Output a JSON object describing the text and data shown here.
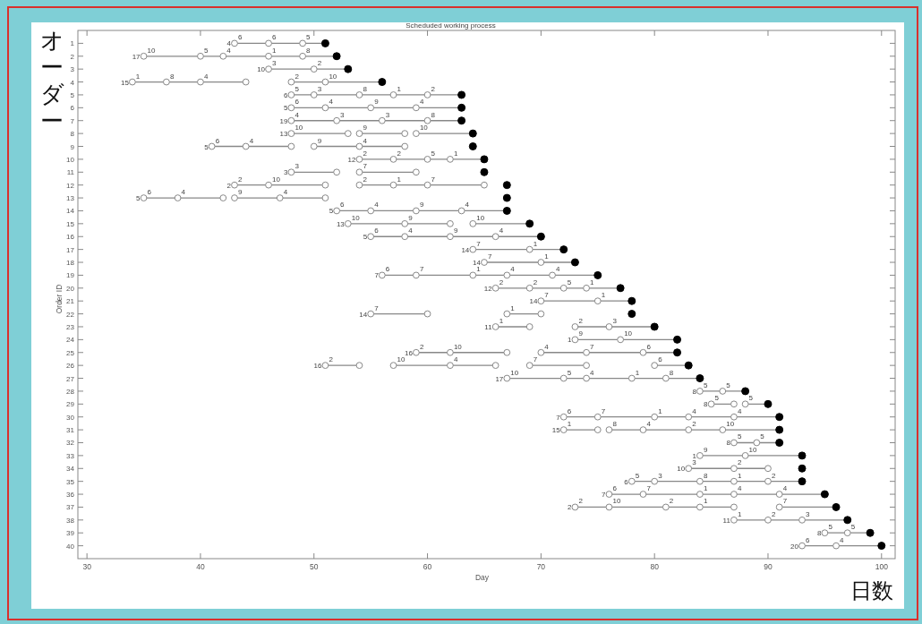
{
  "chart_data": {
    "type": "line",
    "title": "Scheduded working process",
    "xlabel": "Day",
    "ylabel": "Order ID",
    "marker": "circle",
    "xlim": [
      29.2,
      101.2
    ],
    "xticks": [
      30,
      40,
      50,
      60,
      70,
      80,
      90,
      100
    ],
    "ylim": [
      41,
      0
    ],
    "yticks": [
      1,
      2,
      3,
      4,
      5,
      6,
      7,
      8,
      9,
      10,
      11,
      12,
      13,
      14,
      15,
      16,
      17,
      18,
      19,
      20,
      21,
      22,
      23,
      24,
      25,
      26,
      27,
      28,
      29,
      30,
      31,
      32,
      33,
      34,
      35,
      36,
      37,
      38,
      39,
      40
    ],
    "series": [
      {
        "color": "#888888",
        "x": [
          43,
          46,
          49,
          51
        ],
        "values": [
          1,
          1,
          1,
          1
        ]
      },
      {
        "color": "#888888",
        "x": [
          35,
          40,
          42,
          46,
          49,
          52
        ],
        "values": [
          2,
          2,
          2,
          2,
          2,
          2
        ]
      },
      {
        "color": "#888888",
        "x": [
          46,
          50,
          53
        ],
        "values": [
          3,
          3,
          3
        ]
      },
      {
        "color": "#888888",
        "x": [
          34,
          37,
          40,
          44,
          null,
          48,
          51,
          56
        ],
        "values": [
          4,
          4,
          4,
          4,
          null,
          4,
          4,
          4
        ]
      },
      {
        "color": "#888888",
        "x": [
          48,
          50,
          54,
          57,
          60,
          63
        ],
        "values": [
          5,
          5,
          5,
          5,
          5,
          5
        ]
      },
      {
        "color": "#888888",
        "x": [
          48,
          51,
          55,
          59,
          63
        ],
        "values": [
          6,
          6,
          6,
          6,
          6
        ]
      },
      {
        "color": "#888888",
        "x": [
          48,
          52,
          56,
          60,
          63
        ],
        "values": [
          7,
          7,
          7,
          7,
          7
        ]
      },
      {
        "color": "#888888",
        "x": [
          48,
          53,
          null,
          54,
          58,
          null,
          59,
          64
        ],
        "values": [
          8,
          8,
          null,
          8,
          8,
          null,
          8,
          8
        ]
      },
      {
        "color": "#888888",
        "x": [
          41,
          44,
          48,
          null,
          50,
          54,
          58
        ],
        "values": [
          9,
          9,
          9,
          null,
          9,
          9,
          9
        ]
      },
      {
        "color": "#888888",
        "x": [
          54,
          57,
          60,
          62,
          65
        ],
        "values": [
          10,
          10,
          10,
          10,
          10
        ]
      },
      {
        "color": "#888888",
        "x": [
          48,
          52,
          null,
          54,
          59
        ],
        "values": [
          11,
          11,
          null,
          11,
          11
        ]
      },
      {
        "color": "#888888",
        "x": [
          43,
          46,
          51,
          null,
          54,
          57,
          60,
          65
        ],
        "values": [
          12,
          12,
          12,
          null,
          12,
          12,
          12,
          12
        ]
      },
      {
        "color": "#888888",
        "x": [
          35,
          38,
          42,
          null,
          43,
          47,
          51
        ],
        "values": [
          13,
          13,
          13,
          null,
          13,
          13,
          13
        ]
      },
      {
        "color": "#888888",
        "x": [
          52,
          55,
          59,
          63,
          67
        ],
        "values": [
          14,
          14,
          14,
          14,
          14
        ]
      },
      {
        "color": "#888888",
        "x": [
          53,
          58,
          62,
          null,
          64,
          69
        ],
        "values": [
          15,
          15,
          15,
          null,
          15,
          15
        ]
      },
      {
        "color": "#888888",
        "x": [
          55,
          58,
          62,
          66,
          70
        ],
        "values": [
          16,
          16,
          16,
          16,
          16
        ]
      },
      {
        "color": "#888888",
        "x": [
          64,
          69,
          72
        ],
        "values": [
          17,
          17,
          17
        ]
      },
      {
        "color": "#888888",
        "x": [
          65,
          70,
          73
        ],
        "values": [
          18,
          18,
          18
        ]
      },
      {
        "color": "#888888",
        "x": [
          56,
          59,
          64,
          67,
          71,
          75
        ],
        "values": [
          19,
          19,
          19,
          19,
          19,
          19
        ]
      },
      {
        "color": "#888888",
        "x": [
          66,
          69,
          72,
          74,
          77
        ],
        "values": [
          20,
          20,
          20,
          20,
          20
        ]
      },
      {
        "color": "#888888",
        "x": [
          70,
          75,
          78
        ],
        "values": [
          21,
          21,
          21
        ]
      },
      {
        "color": "#888888",
        "x": [
          55,
          60,
          null,
          67,
          70
        ],
        "values": [
          22,
          22,
          null,
          22,
          22
        ]
      },
      {
        "color": "#888888",
        "x": [
          66,
          69,
          null,
          73,
          76,
          80
        ],
        "values": [
          23,
          23,
          null,
          23,
          23,
          23
        ]
      },
      {
        "color": "#888888",
        "x": [
          73,
          77,
          82
        ],
        "values": [
          24,
          24,
          24
        ]
      },
      {
        "color": "#888888",
        "x": [
          59,
          62,
          67,
          null,
          70,
          74,
          79,
          82
        ],
        "values": [
          25,
          25,
          25,
          null,
          25,
          25,
          25,
          25
        ]
      },
      {
        "color": "#888888",
        "x": [
          51,
          54,
          null,
          57,
          62,
          66,
          null,
          69,
          74,
          null,
          80,
          83
        ],
        "values": [
          26,
          26,
          null,
          26,
          26,
          26,
          null,
          26,
          26,
          null,
          26,
          26
        ]
      },
      {
        "color": "#888888",
        "x": [
          67,
          72,
          74,
          78,
          81,
          84
        ],
        "values": [
          27,
          27,
          27,
          27,
          27,
          27
        ]
      },
      {
        "color": "#888888",
        "x": [
          84,
          86,
          88
        ],
        "values": [
          28,
          28,
          28
        ]
      },
      {
        "color": "#888888",
        "x": [
          85,
          87,
          null,
          88,
          90
        ],
        "values": [
          29,
          29,
          null,
          29,
          29
        ]
      },
      {
        "color": "#888888",
        "x": [
          72,
          75,
          80,
          83,
          87,
          91
        ],
        "values": [
          30,
          30,
          30,
          30,
          30,
          30
        ]
      },
      {
        "color": "#888888",
        "x": [
          72,
          75,
          null,
          76,
          79,
          83,
          86,
          91
        ],
        "values": [
          31,
          31,
          null,
          31,
          31,
          31,
          31,
          31
        ]
      },
      {
        "color": "#888888",
        "x": [
          87,
          89,
          91
        ],
        "values": [
          32,
          32,
          32
        ]
      },
      {
        "color": "#888888",
        "x": [
          84,
          88,
          93
        ],
        "values": [
          33,
          33,
          33
        ]
      },
      {
        "color": "#888888",
        "x": [
          83,
          87,
          90
        ],
        "values": [
          34,
          34,
          34
        ]
      },
      {
        "color": "#888888",
        "x": [
          78,
          80,
          84,
          87,
          90,
          93
        ],
        "values": [
          35,
          35,
          35,
          35,
          35,
          35
        ]
      },
      {
        "color": "#888888",
        "x": [
          76,
          79,
          84,
          87,
          91,
          95
        ],
        "values": [
          36,
          36,
          36,
          36,
          36,
          36
        ]
      },
      {
        "color": "#888888",
        "x": [
          73,
          76,
          81,
          84,
          87,
          null,
          91,
          96
        ],
        "values": [
          37,
          37,
          37,
          37,
          37,
          null,
          37,
          37
        ]
      },
      {
        "color": "#888888",
        "x": [
          87,
          90,
          93,
          97
        ],
        "values": [
          38,
          38,
          38,
          38
        ]
      },
      {
        "color": "#888888",
        "x": [
          95,
          97,
          99
        ],
        "values": [
          39,
          39,
          39
        ]
      },
      {
        "color": "#888888",
        "x": [
          93,
          96,
          100
        ],
        "values": [
          40,
          40,
          40
        ]
      },
      {
        "type": "scatter",
        "color": "#000000",
        "x": [
          51,
          52,
          53,
          56,
          63,
          63,
          63,
          64,
          64,
          65,
          65,
          67,
          67,
          67,
          69,
          70,
          72,
          73,
          75,
          77,
          78,
          78,
          80,
          82,
          82,
          83,
          84,
          88,
          90,
          91,
          91,
          91,
          93,
          93,
          93,
          95,
          96,
          97,
          99,
          100
        ],
        "values": [
          1,
          2,
          3,
          4,
          5,
          6,
          7,
          8,
          9,
          10,
          11,
          12,
          13,
          14,
          15,
          16,
          17,
          18,
          19,
          20,
          21,
          22,
          23,
          24,
          25,
          26,
          27,
          28,
          29,
          30,
          31,
          32,
          33,
          34,
          35,
          36,
          37,
          38,
          39,
          40
        ]
      }
    ],
    "annotations": [
      "オーダー",
      "日数",
      {
        "text": "4",
        "x": 43,
        "y": 1
      },
      {
        "text": "17",
        "x": 35,
        "y": 2
      },
      {
        "text": "10",
        "x": 46,
        "y": 3
      },
      {
        "text": "15",
        "x": 34,
        "y": 4
      },
      {
        "text": "6",
        "x": 48,
        "y": 5
      },
      {
        "text": "5",
        "x": 48,
        "y": 6
      },
      {
        "text": "19",
        "x": 48,
        "y": 7
      },
      {
        "text": "13",
        "x": 48,
        "y": 8
      },
      {
        "text": "5",
        "x": 41,
        "y": 9
      },
      {
        "text": "12",
        "x": 54,
        "y": 10
      },
      {
        "text": "3",
        "x": 48,
        "y": 11
      },
      {
        "text": "2",
        "x": 43,
        "y": 12
      },
      {
        "text": "5",
        "x": 35,
        "y": 13
      },
      {
        "text": "5",
        "x": 52,
        "y": 14
      },
      {
        "text": "13",
        "x": 53,
        "y": 15
      },
      {
        "text": "5",
        "x": 55,
        "y": 16
      },
      {
        "text": "14",
        "x": 64,
        "y": 17
      },
      {
        "text": "14",
        "x": 65,
        "y": 18
      },
      {
        "text": "7",
        "x": 56,
        "y": 19
      },
      {
        "text": "12",
        "x": 66,
        "y": 20
      },
      {
        "text": "14",
        "x": 70,
        "y": 21
      },
      {
        "text": "14",
        "x": 55,
        "y": 22
      },
      {
        "text": "11",
        "x": 66,
        "y": 23
      },
      {
        "text": "1",
        "x": 73,
        "y": 24
      },
      {
        "text": "16",
        "x": 59,
        "y": 25
      },
      {
        "text": "16",
        "x": 51,
        "y": 26
      },
      {
        "text": "17",
        "x": 67,
        "y": 27
      },
      {
        "text": "8",
        "x": 84,
        "y": 28
      },
      {
        "text": "8",
        "x": 85,
        "y": 29
      },
      {
        "text": "7",
        "x": 72,
        "y": 30
      },
      {
        "text": "15",
        "x": 72,
        "y": 31
      },
      {
        "text": "8",
        "x": 87,
        "y": 32
      },
      {
        "text": "1",
        "x": 84,
        "y": 33
      },
      {
        "text": "10",
        "x": 83,
        "y": 34
      },
      {
        "text": "6",
        "x": 78,
        "y": 35
      },
      {
        "text": "7",
        "x": 76,
        "y": 36
      },
      {
        "text": "2",
        "x": 73,
        "y": 37
      },
      {
        "text": "11",
        "x": 87,
        "y": 38
      },
      {
        "text": "8",
        "x": 95,
        "y": 39
      },
      {
        "text": "20",
        "x": 93,
        "y": 40
      },
      {
        "text": "6",
        "x": 43,
        "y": 1
      },
      {
        "text": "6",
        "x": 46,
        "y": 1
      },
      {
        "text": "5",
        "x": 49,
        "y": 1
      },
      {
        "text": "10",
        "x": 35,
        "y": 2
      },
      {
        "text": "5",
        "x": 40,
        "y": 2
      },
      {
        "text": "4",
        "x": 42,
        "y": 2
      },
      {
        "text": "1",
        "x": 46,
        "y": 2
      },
      {
        "text": "8",
        "x": 49,
        "y": 2
      },
      {
        "text": "3",
        "x": 46,
        "y": 3
      },
      {
        "text": "2",
        "x": 50,
        "y": 3
      },
      {
        "text": "1",
        "x": 34,
        "y": 4
      },
      {
        "text": "8",
        "x": 37,
        "y": 4
      },
      {
        "text": "4",
        "x": 40,
        "y": 4
      },
      {
        "text": "2",
        "x": 48,
        "y": 4
      },
      {
        "text": "10",
        "x": 51,
        "y": 4
      },
      {
        "text": "5",
        "x": 48,
        "y": 5
      },
      {
        "text": "3",
        "x": 50,
        "y": 5
      },
      {
        "text": "8",
        "x": 54,
        "y": 5
      },
      {
        "text": "1",
        "x": 57,
        "y": 5
      },
      {
        "text": "2",
        "x": 60,
        "y": 5
      },
      {
        "text": "6",
        "x": 48,
        "y": 6
      },
      {
        "text": "4",
        "x": 51,
        "y": 6
      },
      {
        "text": "9",
        "x": 55,
        "y": 6
      },
      {
        "text": "4",
        "x": 59,
        "y": 6
      },
      {
        "text": "4",
        "x": 48,
        "y": 7
      },
      {
        "text": "3",
        "x": 52,
        "y": 7
      },
      {
        "text": "3",
        "x": 56,
        "y": 7
      },
      {
        "text": "8",
        "x": 60,
        "y": 7
      },
      {
        "text": "10",
        "x": 48,
        "y": 8
      },
      {
        "text": "9",
        "x": 54,
        "y": 8
      },
      {
        "text": "10",
        "x": 59,
        "y": 8
      },
      {
        "text": "6",
        "x": 41,
        "y": 9
      },
      {
        "text": "4",
        "x": 44,
        "y": 9
      },
      {
        "text": "9",
        "x": 50,
        "y": 9
      },
      {
        "text": "4",
        "x": 54,
        "y": 9
      },
      {
        "text": "2",
        "x": 54,
        "y": 10
      },
      {
        "text": "2",
        "x": 57,
        "y": 10
      },
      {
        "text": "5",
        "x": 60,
        "y": 10
      },
      {
        "text": "1",
        "x": 62,
        "y": 10
      },
      {
        "text": "3",
        "x": 48,
        "y": 11
      },
      {
        "text": "7",
        "x": 54,
        "y": 11
      },
      {
        "text": "2",
        "x": 43,
        "y": 12
      },
      {
        "text": "10",
        "x": 46,
        "y": 12
      },
      {
        "text": "2",
        "x": 54,
        "y": 12
      },
      {
        "text": "1",
        "x": 57,
        "y": 12
      },
      {
        "text": "7",
        "x": 60,
        "y": 12
      },
      {
        "text": "6",
        "x": 35,
        "y": 13
      },
      {
        "text": "4",
        "x": 38,
        "y": 13
      },
      {
        "text": "9",
        "x": 43,
        "y": 13
      },
      {
        "text": "4",
        "x": 47,
        "y": 13
      },
      {
        "text": "6",
        "x": 52,
        "y": 14
      },
      {
        "text": "4",
        "x": 55,
        "y": 14
      },
      {
        "text": "9",
        "x": 59,
        "y": 14
      },
      {
        "text": "4",
        "x": 63,
        "y": 14
      },
      {
        "text": "10",
        "x": 53,
        "y": 15
      },
      {
        "text": "9",
        "x": 58,
        "y": 15
      },
      {
        "text": "10",
        "x": 64,
        "y": 15
      },
      {
        "text": "6",
        "x": 55,
        "y": 16
      },
      {
        "text": "4",
        "x": 58,
        "y": 16
      },
      {
        "text": "9",
        "x": 62,
        "y": 16
      },
      {
        "text": "4",
        "x": 66,
        "y": 16
      },
      {
        "text": "7",
        "x": 64,
        "y": 17
      },
      {
        "text": "1",
        "x": 69,
        "y": 17
      },
      {
        "text": "7",
        "x": 65,
        "y": 18
      },
      {
        "text": "1",
        "x": 70,
        "y": 18
      },
      {
        "text": "6",
        "x": 56,
        "y": 19
      },
      {
        "text": "7",
        "x": 59,
        "y": 19
      },
      {
        "text": "1",
        "x": 64,
        "y": 19
      },
      {
        "text": "4",
        "x": 67,
        "y": 19
      },
      {
        "text": "4",
        "x": 71,
        "y": 19
      },
      {
        "text": "2",
        "x": 66,
        "y": 20
      },
      {
        "text": "2",
        "x": 69,
        "y": 20
      },
      {
        "text": "5",
        "x": 72,
        "y": 20
      },
      {
        "text": "1",
        "x": 74,
        "y": 20
      },
      {
        "text": "7",
        "x": 70,
        "y": 21
      },
      {
        "text": "1",
        "x": 75,
        "y": 21
      },
      {
        "text": "7",
        "x": 55,
        "y": 22
      },
      {
        "text": "1",
        "x": 67,
        "y": 22
      },
      {
        "text": "1",
        "x": 66,
        "y": 23
      },
      {
        "text": "2",
        "x": 73,
        "y": 23
      },
      {
        "text": "3",
        "x": 76,
        "y": 23
      },
      {
        "text": "9",
        "x": 73,
        "y": 24
      },
      {
        "text": "10",
        "x": 77,
        "y": 24
      },
      {
        "text": "2",
        "x": 59,
        "y": 25
      },
      {
        "text": "10",
        "x": 62,
        "y": 25
      },
      {
        "text": "4",
        "x": 70,
        "y": 25
      },
      {
        "text": "7",
        "x": 74,
        "y": 25
      },
      {
        "text": "6",
        "x": 79,
        "y": 25
      },
      {
        "text": "2",
        "x": 51,
        "y": 26
      },
      {
        "text": "10",
        "x": 57,
        "y": 26
      },
      {
        "text": "4",
        "x": 62,
        "y": 26
      },
      {
        "text": "7",
        "x": 69,
        "y": 26
      },
      {
        "text": "6",
        "x": 80,
        "y": 26
      },
      {
        "text": "10",
        "x": 67,
        "y": 27
      },
      {
        "text": "5",
        "x": 72,
        "y": 27
      },
      {
        "text": "4",
        "x": 74,
        "y": 27
      },
      {
        "text": "1",
        "x": 78,
        "y": 27
      },
      {
        "text": "8",
        "x": 81,
        "y": 27
      },
      {
        "text": "5",
        "x": 84,
        "y": 28
      },
      {
        "text": "5",
        "x": 86,
        "y": 28
      },
      {
        "text": "5",
        "x": 85,
        "y": 29
      },
      {
        "text": "5",
        "x": 88,
        "y": 29
      },
      {
        "text": "6",
        "x": 72,
        "y": 30
      },
      {
        "text": "7",
        "x": 75,
        "y": 30
      },
      {
        "text": "1",
        "x": 80,
        "y": 30
      },
      {
        "text": "4",
        "x": 83,
        "y": 30
      },
      {
        "text": "4",
        "x": 87,
        "y": 30
      },
      {
        "text": "1",
        "x": 72,
        "y": 31
      },
      {
        "text": "8",
        "x": 76,
        "y": 31
      },
      {
        "text": "4",
        "x": 79,
        "y": 31
      },
      {
        "text": "2",
        "x": 83,
        "y": 31
      },
      {
        "text": "10",
        "x": 86,
        "y": 31
      },
      {
        "text": "5",
        "x": 87,
        "y": 32
      },
      {
        "text": "5",
        "x": 89,
        "y": 32
      },
      {
        "text": "9",
        "x": 84,
        "y": 33
      },
      {
        "text": "10",
        "x": 88,
        "y": 33
      },
      {
        "text": "3",
        "x": 83,
        "y": 34
      },
      {
        "text": "2",
        "x": 87,
        "y": 34
      },
      {
        "text": "5",
        "x": 78,
        "y": 35
      },
      {
        "text": "3",
        "x": 80,
        "y": 35
      },
      {
        "text": "8",
        "x": 84,
        "y": 35
      },
      {
        "text": "1",
        "x": 87,
        "y": 35
      },
      {
        "text": "2",
        "x": 90,
        "y": 35
      },
      {
        "text": "6",
        "x": 76,
        "y": 36
      },
      {
        "text": "7",
        "x": 79,
        "y": 36
      },
      {
        "text": "1",
        "x": 84,
        "y": 36
      },
      {
        "text": "4",
        "x": 87,
        "y": 36
      },
      {
        "text": "4",
        "x": 91,
        "y": 36
      },
      {
        "text": "2",
        "x": 73,
        "y": 37
      },
      {
        "text": "10",
        "x": 76,
        "y": 37
      },
      {
        "text": "2",
        "x": 81,
        "y": 37
      },
      {
        "text": "1",
        "x": 84,
        "y": 37
      },
      {
        "text": "7",
        "x": 91,
        "y": 37
      },
      {
        "text": "1",
        "x": 87,
        "y": 38
      },
      {
        "text": "2",
        "x": 90,
        "y": 38
      },
      {
        "text": "3",
        "x": 93,
        "y": 38
      },
      {
        "text": "5",
        "x": 95,
        "y": 39
      },
      {
        "text": "5",
        "x": 97,
        "y": 39
      },
      {
        "text": "6",
        "x": 93,
        "y": 40
      },
      {
        "text": "4",
        "x": 96,
        "y": 40
      }
    ]
  }
}
